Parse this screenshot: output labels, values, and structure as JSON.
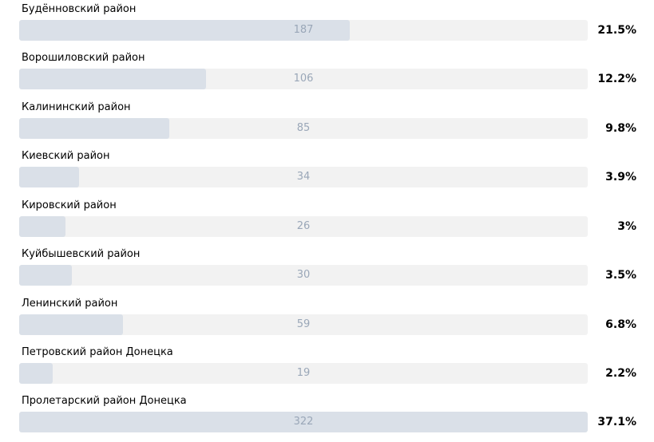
{
  "poll": {
    "options": [
      {
        "label": "Будённовский район",
        "count": "187",
        "percent": "21.5%",
        "share": 0.581
      },
      {
        "label": "Ворошиловский район",
        "count": "106",
        "percent": "12.2%",
        "share": 0.329
      },
      {
        "label": "Калининский район",
        "count": "85",
        "percent": "9.8%",
        "share": 0.264
      },
      {
        "label": "Киевский район",
        "count": "34",
        "percent": "3.9%",
        "share": 0.106
      },
      {
        "label": "Кировский район",
        "count": "26",
        "percent": "3%",
        "share": 0.081
      },
      {
        "label": "Куйбышевский район",
        "count": "30",
        "percent": "3.5%",
        "share": 0.093
      },
      {
        "label": "Ленинский район",
        "count": "59",
        "percent": "6.8%",
        "share": 0.183
      },
      {
        "label": "Петровский район Донецка",
        "count": "19",
        "percent": "2.2%",
        "share": 0.059
      },
      {
        "label": "Пролетарский район Донецка",
        "count": "322",
        "percent": "37.1%",
        "share": 1.0
      }
    ]
  },
  "colors": {
    "bar_fill": "#dae0e8",
    "bar_track": "#f2f2f2",
    "count_text": "#9aa7b8",
    "label_text": "#000000"
  }
}
